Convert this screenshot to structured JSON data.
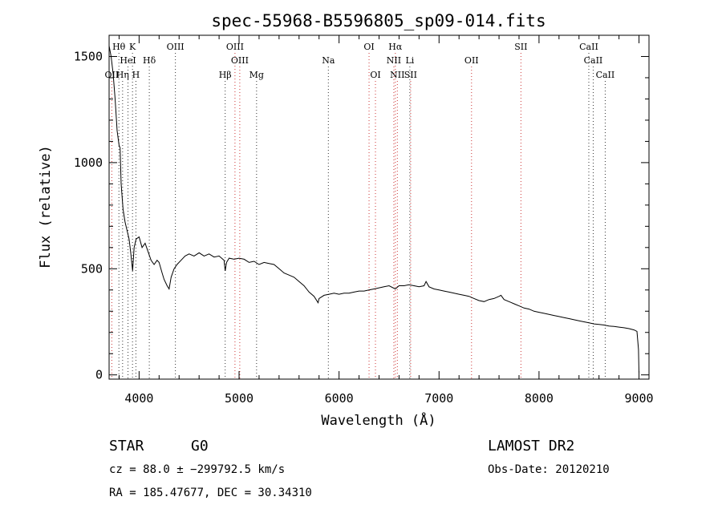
{
  "chart_data": {
    "type": "line",
    "title": "spec-55968-B5596805_sp09-014.fits",
    "xlabel": "Wavelength (Å)",
    "ylabel": "Flux (relative)",
    "xlim": [
      3700,
      9100
    ],
    "ylim": [
      -20,
      1600
    ],
    "xticks": [
      4000,
      5000,
      6000,
      7000,
      8000,
      9000
    ],
    "yticks": [
      0,
      500,
      1000,
      1500
    ],
    "grid": false,
    "series": [
      {
        "values": [
          [
            3700,
            1550
          ],
          [
            3720,
            1500
          ],
          [
            3740,
            1420
          ],
          [
            3760,
            1300
          ],
          [
            3780,
            1150
          ],
          [
            3800,
            1080
          ],
          [
            3810,
            1070
          ],
          [
            3820,
            900
          ],
          [
            3840,
            780
          ],
          [
            3860,
            720
          ],
          [
            3880,
            680
          ],
          [
            3900,
            640
          ],
          [
            3910,
            600
          ],
          [
            3920,
            560
          ],
          [
            3935,
            490
          ],
          [
            3950,
            600
          ],
          [
            3970,
            640
          ],
          [
            4000,
            650
          ],
          [
            4030,
            600
          ],
          [
            4060,
            620
          ],
          [
            4090,
            580
          ],
          [
            4120,
            540
          ],
          [
            4150,
            520
          ],
          [
            4180,
            540
          ],
          [
            4200,
            530
          ],
          [
            4230,
            480
          ],
          [
            4250,
            450
          ],
          [
            4280,
            420
          ],
          [
            4300,
            405
          ],
          [
            4320,
            460
          ],
          [
            4350,
            500
          ],
          [
            4380,
            520
          ],
          [
            4420,
            540
          ],
          [
            4460,
            560
          ],
          [
            4500,
            570
          ],
          [
            4550,
            560
          ],
          [
            4600,
            575
          ],
          [
            4650,
            560
          ],
          [
            4700,
            570
          ],
          [
            4750,
            555
          ],
          [
            4800,
            560
          ],
          [
            4850,
            540
          ],
          [
            4861,
            490
          ],
          [
            4875,
            530
          ],
          [
            4900,
            550
          ],
          [
            4950,
            545
          ],
          [
            5000,
            550
          ],
          [
            5050,
            545
          ],
          [
            5100,
            530
          ],
          [
            5150,
            535
          ],
          [
            5200,
            520
          ],
          [
            5250,
            530
          ],
          [
            5300,
            525
          ],
          [
            5350,
            520
          ],
          [
            5400,
            500
          ],
          [
            5450,
            480
          ],
          [
            5500,
            470
          ],
          [
            5550,
            460
          ],
          [
            5600,
            440
          ],
          [
            5650,
            420
          ],
          [
            5700,
            390
          ],
          [
            5750,
            370
          ],
          [
            5790,
            340
          ],
          [
            5800,
            360
          ],
          [
            5850,
            375
          ],
          [
            5900,
            380
          ],
          [
            5950,
            385
          ],
          [
            6000,
            380
          ],
          [
            6050,
            385
          ],
          [
            6100,
            385
          ],
          [
            6150,
            390
          ],
          [
            6200,
            395
          ],
          [
            6250,
            395
          ],
          [
            6300,
            400
          ],
          [
            6350,
            405
          ],
          [
            6400,
            410
          ],
          [
            6450,
            415
          ],
          [
            6500,
            420
          ],
          [
            6563,
            405
          ],
          [
            6600,
            420
          ],
          [
            6650,
            420
          ],
          [
            6700,
            425
          ],
          [
            6750,
            420
          ],
          [
            6800,
            415
          ],
          [
            6850,
            420
          ],
          [
            6870,
            440
          ],
          [
            6900,
            415
          ],
          [
            6950,
            405
          ],
          [
            7000,
            400
          ],
          [
            7050,
            395
          ],
          [
            7100,
            390
          ],
          [
            7150,
            385
          ],
          [
            7200,
            380
          ],
          [
            7250,
            375
          ],
          [
            7300,
            370
          ],
          [
            7350,
            360
          ],
          [
            7400,
            350
          ],
          [
            7450,
            345
          ],
          [
            7500,
            355
          ],
          [
            7550,
            360
          ],
          [
            7600,
            370
          ],
          [
            7620,
            375
          ],
          [
            7650,
            355
          ],
          [
            7700,
            345
          ],
          [
            7750,
            335
          ],
          [
            7800,
            325
          ],
          [
            7850,
            315
          ],
          [
            7900,
            310
          ],
          [
            7950,
            300
          ],
          [
            8000,
            295
          ],
          [
            8050,
            290
          ],
          [
            8100,
            285
          ],
          [
            8150,
            280
          ],
          [
            8200,
            275
          ],
          [
            8250,
            270
          ],
          [
            8300,
            265
          ],
          [
            8350,
            260
          ],
          [
            8400,
            255
          ],
          [
            8450,
            250
          ],
          [
            8500,
            245
          ],
          [
            8550,
            240
          ],
          [
            8600,
            238
          ],
          [
            8650,
            235
          ],
          [
            8700,
            230
          ],
          [
            8750,
            228
          ],
          [
            8800,
            225
          ],
          [
            8850,
            222
          ],
          [
            8900,
            218
          ],
          [
            8950,
            212
          ],
          [
            8980,
            205
          ],
          [
            8995,
            120
          ],
          [
            9000,
            10
          ]
        ]
      }
    ],
    "line_markers": [
      {
        "label": "Hθ",
        "wl": 3798,
        "row": 1,
        "color": "#333333"
      },
      {
        "label": "K",
        "wl": 3934,
        "row": 1,
        "color": "#333333"
      },
      {
        "label": "OIII",
        "wl": 4363,
        "row": 1,
        "color": "#333333"
      },
      {
        "label": "OIII",
        "wl": 4959,
        "row": 1,
        "color": "#cc3333"
      },
      {
        "label": "OI",
        "wl": 6300,
        "row": 1,
        "color": "#cc3333"
      },
      {
        "label": "Hα",
        "wl": 6563,
        "row": 1,
        "color": "#cc3333"
      },
      {
        "label": "SII",
        "wl": 7819,
        "row": 1,
        "color": "#cc3333"
      },
      {
        "label": "CaII",
        "wl": 8498,
        "row": 1,
        "color": "#333333"
      },
      {
        "label": "HeI",
        "wl": 3889,
        "row": 2,
        "color": "#333333"
      },
      {
        "label": "Hδ",
        "wl": 4102,
        "row": 2,
        "color": "#333333"
      },
      {
        "label": "OIII",
        "wl": 5007,
        "row": 2,
        "color": "#cc3333"
      },
      {
        "label": "Na",
        "wl": 5893,
        "row": 2,
        "color": "#333333"
      },
      {
        "label": "NII",
        "wl": 6548,
        "row": 2,
        "color": "#cc3333"
      },
      {
        "label": "Li",
        "wl": 6708,
        "row": 2,
        "color": "#333333"
      },
      {
        "label": "OII",
        "wl": 7325,
        "row": 2,
        "color": "#cc3333"
      },
      {
        "label": "CaII",
        "wl": 8542,
        "row": 2,
        "color": "#333333"
      },
      {
        "label": "OII",
        "wl": 3727,
        "row": 3,
        "color": "#cc3333"
      },
      {
        "label": "Hη",
        "wl": 3835,
        "row": 3,
        "color": "#333333"
      },
      {
        "label": "H",
        "wl": 3968,
        "row": 3,
        "color": "#333333"
      },
      {
        "label": "Hβ",
        "wl": 4861,
        "row": 3,
        "color": "#333333"
      },
      {
        "label": "Mg",
        "wl": 5175,
        "row": 3,
        "color": "#333333"
      },
      {
        "label": "OI",
        "wl": 6364,
        "row": 3,
        "color": "#cc3333"
      },
      {
        "label": "NII",
        "wl": 6583,
        "row": 3,
        "color": "#cc3333"
      },
      {
        "label": "SII",
        "wl": 6716,
        "row": 3,
        "color": "#cc3333"
      },
      {
        "label": "CaII",
        "wl": 8662,
        "row": 3,
        "color": "#333333"
      }
    ]
  },
  "info": {
    "class": "STAR",
    "subclass": "G0",
    "survey": "LAMOST DR2",
    "cz": "cz = 88.0 ± −299792.5 km/s",
    "obs_date": "Obs-Date: 20120210",
    "radec": "RA = 185.47677, DEC =  30.34310"
  }
}
